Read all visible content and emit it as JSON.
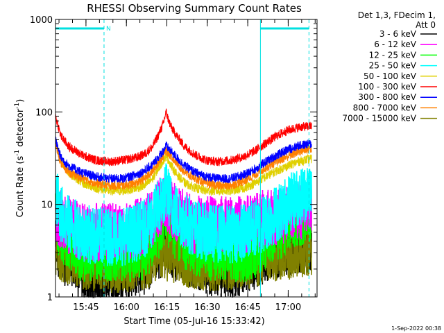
{
  "chart_data": {
    "type": "line",
    "title": "RHESSI Observing Summary Count Rates",
    "xlabel": "Start Time (05-Jul-16 15:33:42)",
    "ylabel_main": "Count Rate (s",
    "ylabel_sup1": "-1",
    "ylabel_mid": " detector",
    "ylabel_sup2": "-1",
    "ylabel_end": ")",
    "y_scale": "log",
    "ylim": [
      1,
      1000
    ],
    "xlim_minutes": [
      0,
      97
    ],
    "grid": false,
    "legend_header": [
      "Det 1,3, FDecim 1,",
      "Att 0"
    ],
    "footer": "1-Sep-2022 00:38",
    "flag_label": "N",
    "x_ticks": [
      {
        "t": 11.3,
        "label": "15:45"
      },
      {
        "t": 26.3,
        "label": "16:00"
      },
      {
        "t": 41.3,
        "label": "16:15"
      },
      {
        "t": 56.3,
        "label": "16:30"
      },
      {
        "t": 71.3,
        "label": "16:45"
      },
      {
        "t": 86.3,
        "label": "17:00"
      }
    ],
    "y_ticks": [
      {
        "v": 1,
        "label": "1"
      },
      {
        "v": 10,
        "label": "10"
      },
      {
        "v": 100,
        "label": "100"
      },
      {
        "v": 1000,
        "label": "1000"
      }
    ],
    "night_boundaries_minutes": [
      18,
      76,
      94
    ],
    "saa_flag_segments_minutes": [
      [
        0,
        18
      ],
      [
        76,
        94
      ]
    ],
    "x": [
      0,
      2,
      5,
      10,
      15,
      20,
      25,
      30,
      33,
      36,
      38,
      40,
      41,
      42,
      43,
      45,
      48,
      52,
      56,
      60,
      65,
      70,
      74,
      78,
      82,
      86,
      90,
      94,
      95
    ],
    "series": [
      {
        "name": "3 - 6 keV",
        "color": "#000000",
        "values": [
          3.5,
          3,
          2.5,
          1.8,
          1.5,
          1.8,
          2,
          2,
          2.2,
          2.5,
          3,
          3.5,
          3.8,
          3.5,
          3.2,
          3,
          2.8,
          2.5,
          2.2,
          2,
          2,
          2.2,
          2.5,
          3,
          3.2,
          3.5,
          3.6,
          3.8,
          3.8
        ]
      },
      {
        "name": "6 - 12 keV",
        "color": "#ff00ff",
        "values": [
          8,
          7,
          6,
          5,
          5,
          5,
          5,
          5.5,
          6,
          7,
          9,
          10,
          11,
          10,
          9,
          8,
          7,
          6,
          6,
          6,
          6,
          6,
          6.5,
          7,
          7.5,
          8,
          8.5,
          9,
          9
        ]
      },
      {
        "name": "12 - 25 keV",
        "color": "#00ff00",
        "values": [
          7,
          5,
          4,
          3,
          3,
          3,
          3,
          3,
          3.2,
          4,
          5,
          7,
          8,
          7,
          6,
          5,
          4,
          3.5,
          3.2,
          3,
          3,
          3,
          3.3,
          4,
          5,
          6,
          7,
          8,
          8
        ]
      },
      {
        "name": "25 - 50 keV",
        "color": "#00ffff",
        "values": [
          13,
          8,
          6,
          5,
          4.5,
          4.5,
          4.5,
          5,
          5.5,
          7,
          9,
          12,
          14,
          12,
          10,
          8,
          6.5,
          5.5,
          5,
          4.8,
          4.8,
          5,
          5.5,
          6.5,
          8,
          10,
          12,
          14,
          14
        ]
      },
      {
        "name": "50 - 100 keV",
        "color": "#e0d000",
        "values": [
          50,
          30,
          22,
          17,
          15,
          14,
          14,
          15,
          16,
          19,
          24,
          30,
          33,
          30,
          26,
          21,
          17,
          15,
          14,
          14,
          14,
          15,
          17,
          20,
          23,
          26,
          29,
          31,
          31
        ]
      },
      {
        "name": "100 - 300 keV",
        "color": "#ff0000",
        "values": [
          90,
          55,
          42,
          34,
          30,
          29,
          30,
          32,
          35,
          42,
          55,
          75,
          100,
          80,
          68,
          55,
          42,
          34,
          30,
          29,
          30,
          33,
          38,
          46,
          55,
          63,
          68,
          70,
          70
        ]
      },
      {
        "name": "300 - 800 keV",
        "color": "#0000ff",
        "values": [
          50,
          32,
          26,
          22,
          20,
          19,
          19,
          21,
          23,
          27,
          32,
          38,
          43,
          40,
          37,
          32,
          26,
          22,
          20,
          19,
          19,
          21,
          24,
          29,
          34,
          39,
          43,
          45,
          45
        ]
      },
      {
        "name": "800 - 7000 keV",
        "color": "#ff8000",
        "values": [
          45,
          28,
          22,
          19,
          17,
          16,
          16,
          17,
          19,
          23,
          28,
          34,
          38,
          36,
          33,
          28,
          22,
          19,
          17,
          16,
          16,
          18,
          21,
          25,
          29,
          33,
          37,
          40,
          40
        ]
      },
      {
        "name": "7000 - 15000 keV",
        "color": "#808000",
        "values": [
          3.5,
          3,
          2.8,
          2.5,
          2.4,
          2.3,
          2.3,
          2.4,
          2.5,
          2.7,
          2.9,
          3,
          3.1,
          3,
          2.9,
          2.8,
          2.6,
          2.5,
          2.4,
          2.4,
          2.4,
          2.5,
          2.6,
          2.8,
          3,
          3.2,
          3.3,
          3.5,
          3.5
        ]
      }
    ]
  }
}
